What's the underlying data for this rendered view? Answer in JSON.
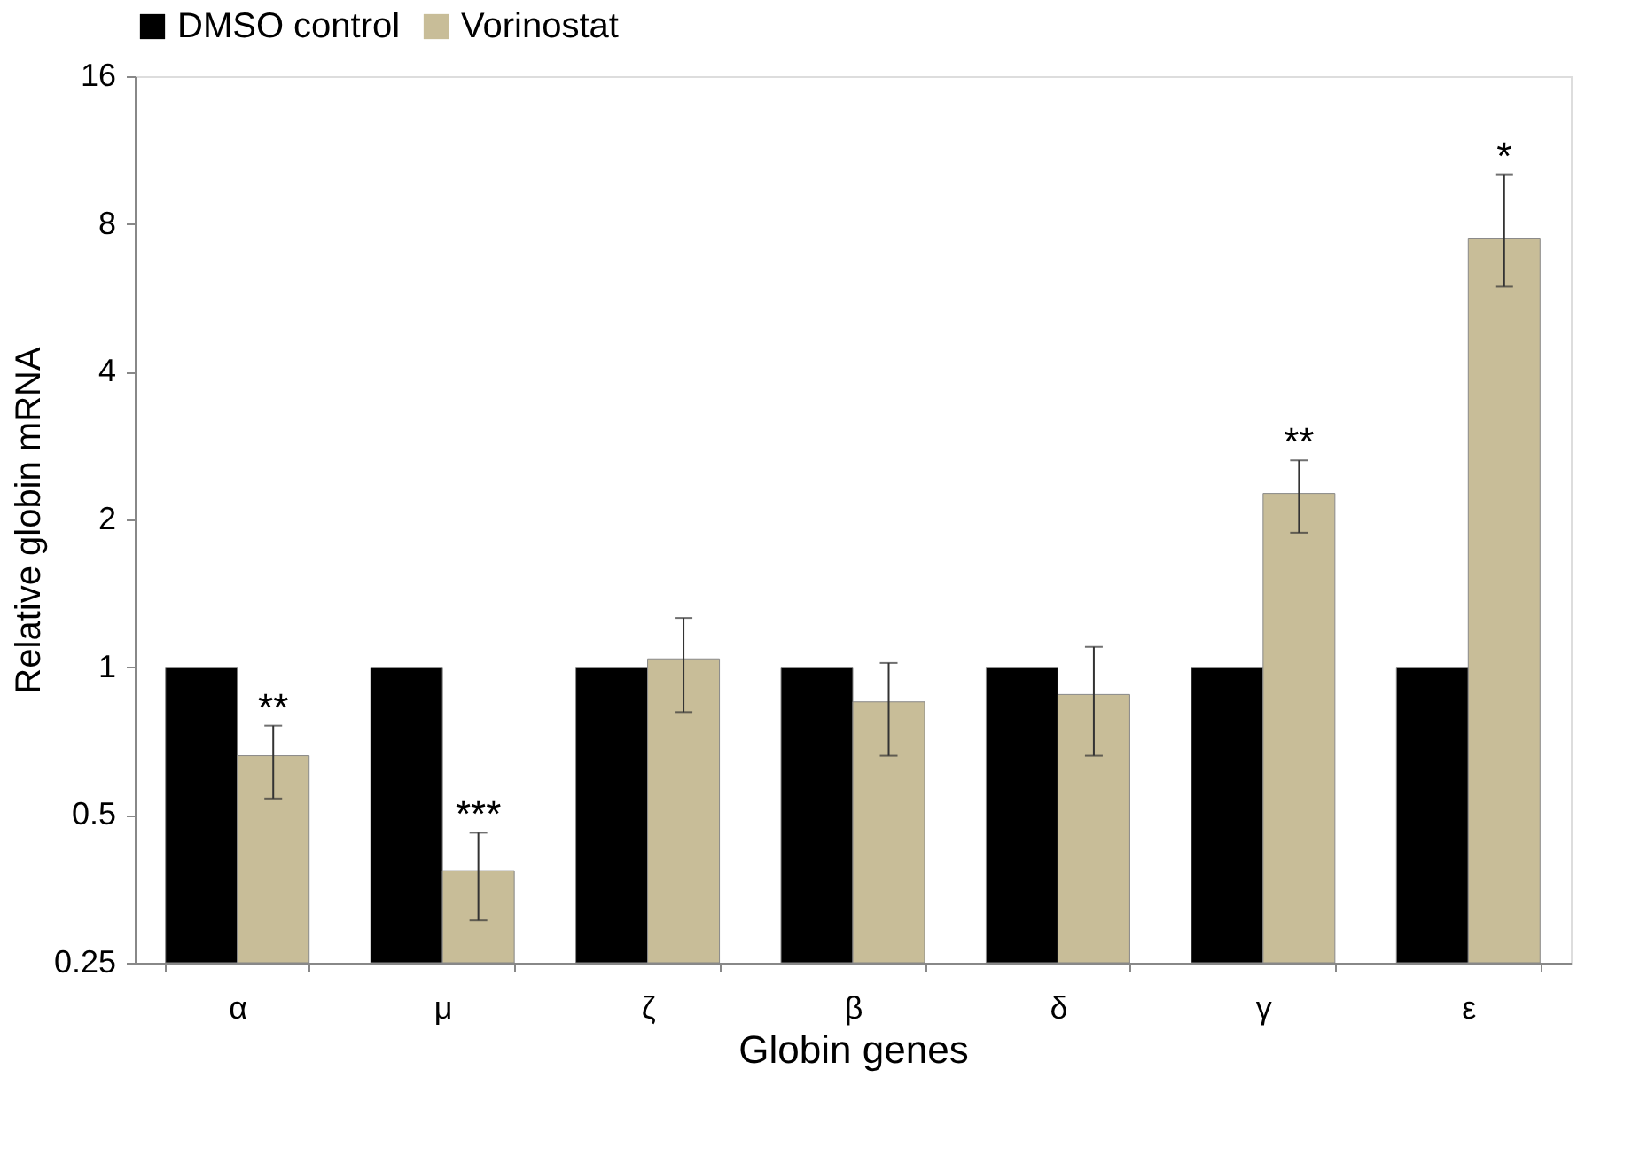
{
  "chart_data": {
    "type": "bar",
    "xlabel": "Globin genes",
    "ylabel": "Relative globin mRNA",
    "categories": [
      "α",
      "μ",
      "ζ",
      "β",
      "δ",
      "γ",
      "ε"
    ],
    "series": [
      {
        "name": "DMSO control",
        "color": "#000000",
        "values": [
          1,
          1,
          1,
          1,
          1,
          1,
          1
        ]
      },
      {
        "name": "Vorinostat",
        "color": "#c8bd98",
        "values": [
          0.66,
          0.385,
          1.04,
          0.85,
          0.88,
          2.26,
          7.46
        ],
        "errors": [
          [
            0.54,
            0.76
          ],
          [
            0.305,
            0.46
          ],
          [
            0.81,
            1.26
          ],
          [
            0.66,
            1.02
          ],
          [
            0.66,
            1.1
          ],
          [
            1.88,
            2.64
          ],
          [
            5.96,
            10.1
          ]
        ]
      }
    ],
    "log": "y",
    "ylim": [
      0.25,
      16
    ],
    "yticks": [
      0.25,
      0.5,
      1,
      2,
      4,
      8,
      16
    ],
    "grid": false,
    "legend": "top",
    "annotations": [
      {
        "text": "**",
        "x": "α",
        "y": 0.66
      },
      {
        "text": "***",
        "x": "μ",
        "y": 0.385
      },
      {
        "text": "**",
        "x": "γ",
        "y": 2.26
      },
      {
        "text": "*",
        "x": "ε",
        "y": 7.46
      }
    ]
  }
}
